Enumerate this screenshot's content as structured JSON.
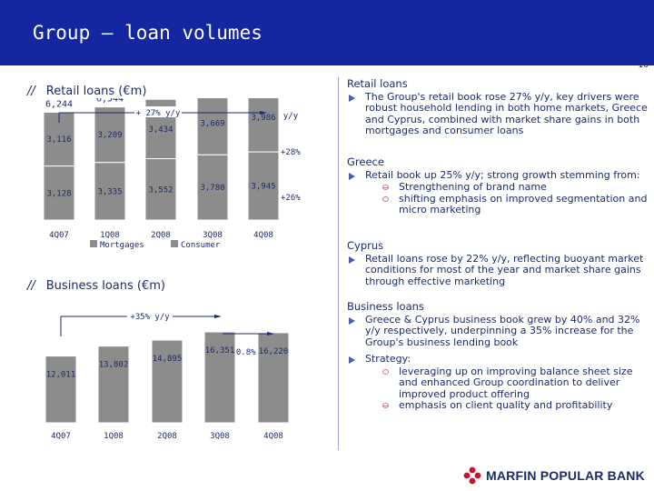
{
  "title": "Group – loan volumes",
  "page_number": "10",
  "colors": {
    "header": "#1426a0",
    "bar": "#8c8c8c",
    "bar_dark": "#686868",
    "text": "#1b2a6b"
  },
  "chart_data": [
    {
      "type": "bar",
      "stacked": true,
      "title": "Retail loans (€m)",
      "categories": [
        "4Q07",
        "1Q08",
        "2Q08",
        "3Q08",
        "4Q08"
      ],
      "series": [
        {
          "name": "Mortgages",
          "values": [
            3128,
            3335,
            3552,
            3780,
            3945
          ],
          "labels": [
            "3,128",
            "3,335",
            "3,552",
            "3,780",
            "3,945"
          ]
        },
        {
          "name": "Consumer",
          "values": [
            3116,
            3209,
            3434,
            3669,
            3986
          ],
          "labels": [
            "3,116",
            "3,209",
            "3,434",
            "3,669",
            "3,986"
          ]
        }
      ],
      "totals": [
        6244,
        6544,
        6986,
        7449,
        7931
      ],
      "total_labels": [
        "6,244",
        "6,544",
        "6,986",
        "7,449",
        "7,931"
      ],
      "growth_label": "+ 27% y/y",
      "yy_label": "y/y",
      "series_growth": [
        "+26%",
        "+28%"
      ],
      "legend": "bottom"
    },
    {
      "type": "bar",
      "title": "Business loans (€m)",
      "categories": [
        "4Q07",
        "1Q08",
        "2Q08",
        "3Q08",
        "4Q08"
      ],
      "values": [
        12011,
        13802,
        14895,
        16351,
        16220
      ],
      "labels": [
        "12,011",
        "13,802",
        "14,895",
        "16,351",
        "16,220"
      ],
      "growth_label": "+35% y/y",
      "change_label": "-0.8%"
    }
  ],
  "notes": {
    "retail": {
      "heading": "Retail loans",
      "bullet": "The Group's retail book rose 27% y/y, key drivers were robust household lending in both home markets, Greece and Cyprus, combined with market share gains in both mortgages and consumer loans"
    },
    "greece": {
      "heading": "Greece",
      "bullet": "Retail book up 25% y/y; strong growth stemming from:",
      "sub": [
        "Strengthening of brand name",
        "shifting emphasis on improved segmentation and micro marketing"
      ]
    },
    "cyprus": {
      "heading": "Cyprus",
      "bullet": "Retail loans rose by 22% y/y, reflecting buoyant market conditions for most of the year and market share gains through effective marketing"
    },
    "business": {
      "heading": "Business loans",
      "bullet": "Greece & Cyprus business book grew by 40% and 32% y/y respectively, underpinning a 35% increase for the Group's business lending book",
      "strategy": "Strategy:",
      "sub": [
        "leveraging up on improving balance sheet size and enhanced Group coordination to deliver improved product offering",
        "emphasis on client quality and profitability"
      ]
    }
  },
  "logo": "MARFIN POPULAR BANK"
}
